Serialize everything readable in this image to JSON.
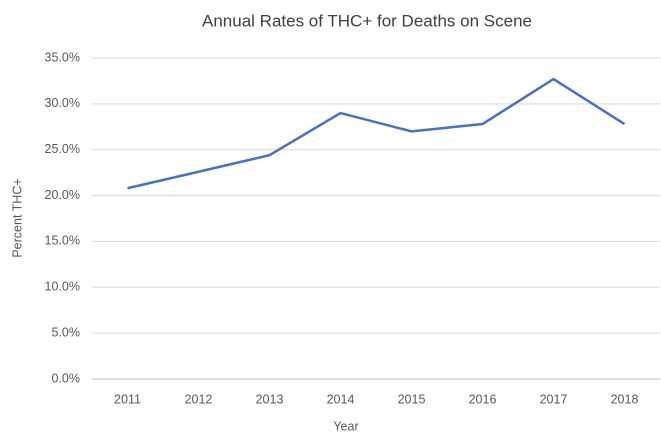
{
  "chart_data": {
    "type": "line",
    "title": "Annual Rates of THC+ for Deaths on Scene",
    "x_label": "Year",
    "y_label": "Percent THC+",
    "categories": [
      "2011",
      "2012",
      "2013",
      "2014",
      "2015",
      "2016",
      "2017",
      "2018"
    ],
    "series": [
      {
        "name": "Percent THC+",
        "color": "#4472c4",
        "values": [
          20.8,
          22.6,
          24.4,
          29.0,
          27.0,
          27.8,
          32.7,
          27.8
        ]
      }
    ],
    "ylim": [
      0,
      35
    ],
    "yticks": [
      {
        "value": 0,
        "label": "0.0%"
      },
      {
        "value": 5,
        "label": "5.0%"
      },
      {
        "value": 10,
        "label": "10.0%"
      },
      {
        "value": 15,
        "label": "15.0%"
      },
      {
        "value": 20,
        "label": "20.0%"
      },
      {
        "value": 25,
        "label": "25.0%"
      },
      {
        "value": 30,
        "label": "30.0%"
      },
      {
        "value": 35,
        "label": "35.0%"
      }
    ],
    "grid": true
  }
}
